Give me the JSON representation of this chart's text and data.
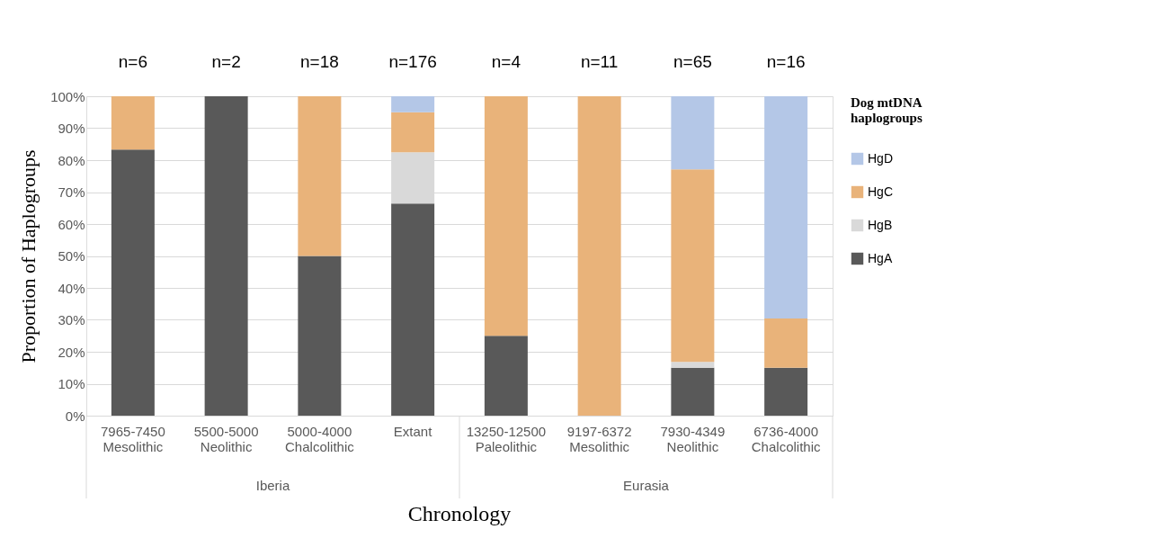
{
  "chart_data": {
    "type": "bar",
    "stacked": true,
    "xlabel": "Chronology",
    "ylabel": "Proportion of Haplogroups",
    "legend_title": "Dog mtDNA haplogroups",
    "categories": [
      "7965-7450 Mesolithic",
      "5500-5000 Neolithic",
      "5000-4000 Chalcolithic",
      "Extant",
      "13250-12500 Paleolithic",
      "9197-6372 Mesolithic",
      "7930-4349 Neolithic",
      "6736-4000 Chalcolithic"
    ],
    "series": [
      {
        "name": "HgA",
        "color": "#595959",
        "values": [
          83.3,
          100,
          50,
          66.4,
          25,
          0,
          15,
          15
        ]
      },
      {
        "name": "HgB",
        "color": "#d9d9d9",
        "values": [
          0,
          0,
          0,
          16.1,
          0,
          0,
          1.8,
          0
        ]
      },
      {
        "name": "HgC",
        "color": "#e9b37a",
        "values": [
          16.7,
          0,
          50,
          12.5,
          75,
          100,
          60.3,
          15.4
        ]
      },
      {
        "name": "HgD",
        "color": "#b4c7e7",
        "values": [
          0,
          0,
          0,
          5,
          0,
          0,
          22.9,
          69.6
        ]
      }
    ],
    "ylim": [
      0,
      100
    ],
    "yticks": [
      {
        "value": 0,
        "label": "0%"
      },
      {
        "value": 10,
        "label": "10%"
      },
      {
        "value": 20,
        "label": "20%"
      },
      {
        "value": 30,
        "label": "30%"
      },
      {
        "value": 40,
        "label": "40%"
      },
      {
        "value": 50,
        "label": "50%"
      },
      {
        "value": 60,
        "label": "60%"
      },
      {
        "value": 70,
        "label": "70%"
      },
      {
        "value": 80,
        "label": "80%"
      },
      {
        "value": 90,
        "label": "90%"
      },
      {
        "value": 100,
        "label": "100%"
      }
    ],
    "grid": "y",
    "legend": "right",
    "annotations": [
      "n=6",
      "n=2",
      "n=18",
      "n=176",
      "n=4",
      "n=11",
      "n=65",
      "n=16",
      "Iberia",
      "Eurasia"
    ]
  }
}
